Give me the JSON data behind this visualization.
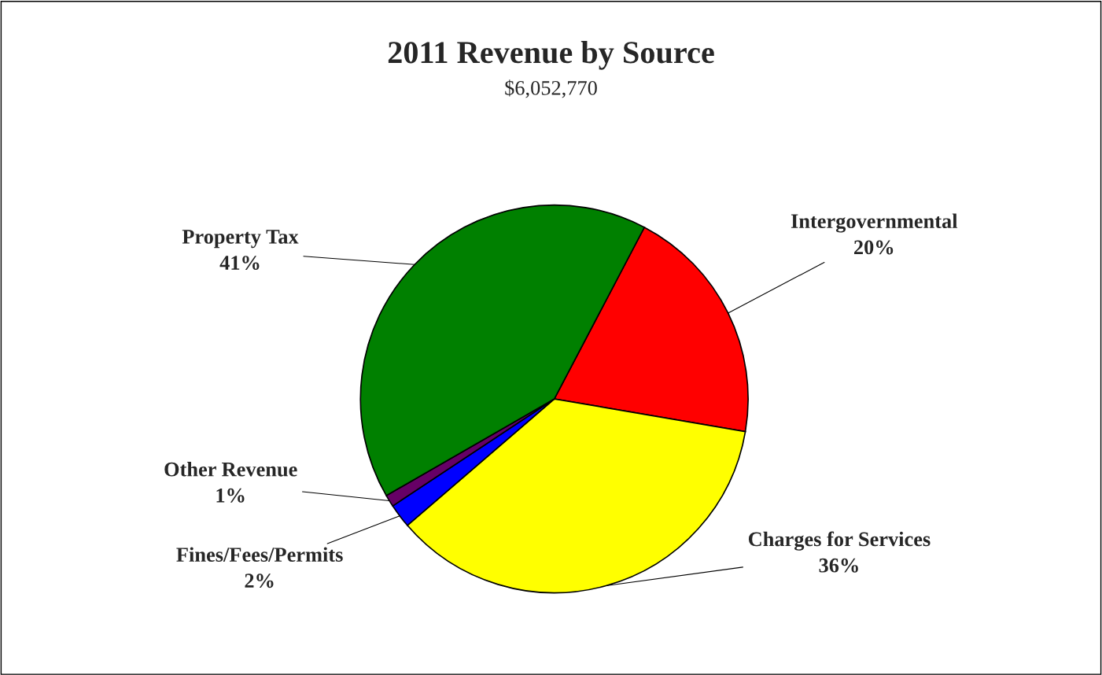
{
  "chart_data": {
    "type": "pie",
    "title": "2011 Revenue by Source",
    "subtitle": "$6,052,770",
    "categories": [
      "Intergovernmental",
      "Charges for Services",
      "Fines/Fees/Permits",
      "Other Revenue",
      "Property Tax"
    ],
    "values": [
      20,
      36,
      2,
      1,
      41
    ],
    "value_labels": [
      "20%",
      "36%",
      "2%",
      "1%",
      "41%"
    ],
    "colors": [
      "#ff0000",
      "#ffff00",
      "#0000ff",
      "#660066",
      "#008000"
    ],
    "legend": false
  }
}
